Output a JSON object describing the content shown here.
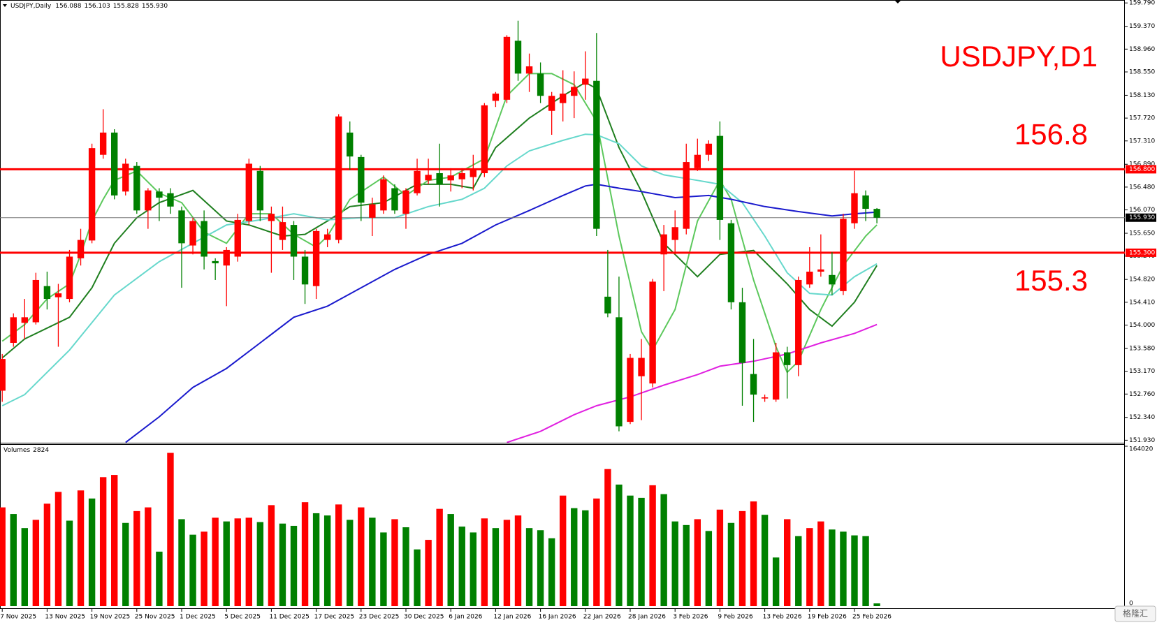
{
  "chart_data": {
    "type": "candlestick",
    "title": "USDJPY,D1",
    "header": {
      "symbol": "USDJPY,Daily",
      "ohlc_labels": [
        "156.088",
        "156.103",
        "155.828",
        "155.930"
      ]
    },
    "categories": [
      "7 Nov 2025",
      null,
      null,
      null,
      "13 Nov 2025",
      null,
      null,
      null,
      "19 Nov 2025",
      null,
      null,
      null,
      "25 Nov 2025",
      null,
      null,
      null,
      "1 Dec 2025",
      null,
      null,
      null,
      "5 Dec 2025",
      null,
      null,
      null,
      "11 Dec 2025",
      null,
      null,
      null,
      "17 Dec 2025",
      null,
      null,
      null,
      "23 Dec 2025",
      null,
      null,
      null,
      "30 Dec 2025",
      null,
      null,
      null,
      "6 Jan 2026",
      null,
      null,
      null,
      "12 Jan 2026",
      null,
      null,
      null,
      "16 Jan 2026",
      null,
      null,
      null,
      "22 Jan 2026",
      null,
      null,
      null,
      "28 Jan 2026",
      null,
      null,
      null,
      "3 Feb 2026",
      null,
      null,
      null,
      "9 Feb 2026",
      null,
      null,
      null,
      "13 Feb 2026",
      null,
      null,
      null,
      "19 Feb 2026",
      null,
      null,
      null,
      "25 Feb 2026",
      null,
      null
    ],
    "open": [
      152.82,
      153.68,
      154.04,
      154.05,
      154.7,
      154.5,
      154.47,
      155.2,
      155.52,
      157.06,
      157.46,
      156.4,
      156.86,
      156.06,
      156.4,
      156.37,
      156.06,
      155.43,
      155.87,
      155.15,
      155.07,
      155.23,
      155.87,
      156.77,
      155.87,
      155.53,
      155.8,
      155.23,
      154.7,
      155.53,
      155.53,
      157.46,
      157.02,
      155.93,
      156.06,
      156.46,
      156.0,
      156.37,
      156.6,
      156.73,
      156.6,
      156.62,
      156.66,
      156.73,
      158.03,
      158.05,
      159.11,
      158.52,
      158.52,
      157.85,
      157.99,
      158.12,
      158.32,
      158.39,
      154.51,
      154.14,
      152.26,
      153.08,
      152.95,
      155.27,
      155.53,
      155.73,
      156.82,
      157.06,
      157.4,
      155.83,
      154.41,
      153.12,
      152.68,
      152.66,
      153.51,
      153.28,
      154.73,
      154.96,
      154.9,
      154.61,
      155.83,
      156.33,
      156.088
    ],
    "high": [
      153.48,
      154.21,
      154.47,
      154.94,
      154.96,
      154.74,
      155.35,
      155.73,
      157.26,
      157.88,
      157.52,
      156.99,
      156.93,
      156.46,
      156.46,
      156.46,
      156.13,
      155.93,
      156.06,
      155.2,
      155.4,
      156.0,
      156.99,
      156.86,
      156.13,
      156.13,
      155.87,
      155.35,
      155.73,
      155.73,
      157.79,
      157.66,
      157.06,
      156.29,
      156.69,
      156.53,
      156.46,
      156.99,
      156.99,
      157.26,
      156.82,
      156.82,
      157.06,
      157.99,
      158.19,
      159.21,
      159.47,
      158.88,
      158.72,
      158.19,
      158.58,
      158.56,
      158.92,
      159.25,
      155.35,
      154.87,
      153.48,
      153.75,
      154.83,
      155.8,
      156.06,
      157.26,
      157.35,
      157.32,
      157.66,
      155.89,
      154.67,
      153.75,
      152.75,
      153.68,
      153.61,
      154.87,
      155.4,
      155.63,
      155.31,
      156.0,
      156.77,
      156.42,
      156.103
    ],
    "low": [
      152.62,
      153.61,
      153.75,
      154.01,
      154.28,
      153.61,
      154.41,
      155.07,
      155.47,
      156.99,
      156.26,
      156.33,
      156.0,
      155.73,
      155.87,
      156.0,
      154.67,
      155.27,
      155.0,
      154.81,
      154.34,
      155.14,
      155.8,
      155.87,
      154.94,
      155.35,
      154.81,
      154.38,
      154.47,
      155.4,
      155.47,
      156.79,
      155.87,
      155.6,
      156.0,
      156.0,
      155.73,
      156.33,
      156.53,
      156.13,
      156.4,
      156.46,
      156.42,
      156.66,
      157.92,
      157.99,
      158.39,
      158.19,
      157.99,
      157.42,
      157.66,
      157.72,
      158.05,
      155.6,
      154.14,
      152.09,
      152.22,
      152.29,
      152.88,
      154.61,
      155.27,
      155.63,
      156.77,
      156.95,
      155.53,
      154.28,
      152.55,
      152.26,
      152.62,
      152.62,
      152.68,
      153.08,
      154.67,
      154.87,
      154.54,
      154.54,
      155.73,
      155.87,
      155.828
    ],
    "close": [
      153.39,
      154.14,
      154.14,
      154.81,
      154.47,
      154.57,
      155.23,
      155.53,
      157.18,
      157.46,
      156.33,
      156.9,
      156.06,
      156.42,
      156.29,
      156.13,
      155.47,
      155.87,
      155.23,
      155.11,
      155.35,
      155.89,
      156.9,
      156.06,
      156.0,
      155.85,
      155.23,
      154.73,
      155.69,
      155.63,
      157.75,
      157.03,
      156.2,
      156.17,
      156.62,
      156.06,
      156.42,
      156.77,
      156.7,
      156.53,
      156.69,
      156.73,
      156.79,
      157.95,
      158.16,
      159.18,
      158.52,
      158.65,
      158.12,
      158.12,
      158.16,
      158.28,
      158.43,
      155.73,
      154.21,
      152.18,
      153.41,
      153.41,
      154.78,
      155.63,
      155.76,
      156.93,
      157.06,
      157.26,
      155.89,
      154.41,
      153.32,
      152.75,
      152.7,
      153.51,
      153.28,
      154.81,
      154.96,
      155.0,
      154.73,
      155.91,
      156.37,
      156.09,
      155.93
    ],
    "up_color": "#ff0000",
    "down_color": "#008000",
    "ylim": [
      151.93,
      159.79
    ],
    "yticks": [
      {
        "value": 159.79,
        "label": "159.790"
      },
      {
        "value": 159.37,
        "label": "159.370"
      },
      {
        "value": 158.96,
        "label": "158.960"
      },
      {
        "value": 158.55,
        "label": "158.550"
      },
      {
        "value": 158.13,
        "label": "158.130"
      },
      {
        "value": 157.72,
        "label": "157.720"
      },
      {
        "value": 157.31,
        "label": "157.310"
      },
      {
        "value": 156.89,
        "label": "156.890"
      },
      {
        "value": 156.48,
        "label": "156.480"
      },
      {
        "value": 156.07,
        "label": "156.070"
      },
      {
        "value": 155.65,
        "label": "155.650"
      },
      {
        "value": 155.24,
        "label": "155.240"
      },
      {
        "value": 154.82,
        "label": "154.820"
      },
      {
        "value": 154.41,
        "label": "154.410"
      },
      {
        "value": 154.0,
        "label": "154.000"
      },
      {
        "value": 153.58,
        "label": "153.580"
      },
      {
        "value": 153.17,
        "label": "153.170"
      },
      {
        "value": 152.76,
        "label": "152.760"
      },
      {
        "value": 152.34,
        "label": "152.340"
      },
      {
        "value": 151.93,
        "label": "151.930"
      }
    ],
    "last_price_label": "155.930",
    "levels": [
      {
        "value": 156.8,
        "label": "156.800",
        "text": "156.8"
      },
      {
        "value": 155.3,
        "label": "155.300",
        "text": "155.3"
      }
    ],
    "level_color": "#ff0000",
    "moving_averages": [
      {
        "color": "#1f7f1f",
        "x": [
          0,
          2,
          6,
          8,
          10,
          12,
          14,
          17,
          20,
          22,
          25,
          27,
          29,
          31,
          34,
          37,
          40,
          42,
          44,
          47,
          50,
          52,
          53,
          55,
          57,
          59,
          62,
          64,
          67,
          70,
          72,
          74,
          76,
          78
        ],
        "values": [
          153.41,
          153.75,
          154.14,
          154.67,
          155.47,
          155.93,
          156.2,
          156.42,
          155.87,
          155.8,
          155.6,
          155.63,
          155.87,
          156.13,
          156.2,
          156.53,
          156.53,
          156.46,
          157.19,
          157.72,
          158.12,
          158.36,
          158.25,
          157.19,
          156.4,
          155.47,
          154.87,
          155.27,
          155.34,
          154.74,
          154.28,
          153.98,
          154.41,
          155.07
        ]
      },
      {
        "color": "#5cc85c",
        "x": [
          0,
          2,
          4,
          6,
          7,
          8,
          9,
          10,
          12,
          14,
          16,
          18,
          20,
          22,
          24,
          26,
          28,
          29,
          31,
          34,
          36,
          38,
          40,
          43,
          45,
          47,
          49,
          51,
          53,
          55,
          57,
          58,
          60,
          62,
          64,
          65,
          67,
          69,
          70,
          71,
          73,
          75,
          77,
          78
        ],
        "values": [
          153.71,
          154.01,
          154.47,
          154.74,
          155.27,
          155.87,
          156.26,
          156.6,
          156.77,
          156.37,
          156.2,
          155.67,
          155.47,
          156.0,
          156.0,
          155.63,
          155.4,
          155.6,
          156.26,
          156.66,
          156.33,
          156.6,
          156.66,
          156.99,
          158.12,
          158.52,
          158.52,
          158.32,
          157.66,
          155.6,
          153.88,
          153.55,
          154.28,
          155.87,
          156.6,
          156.26,
          154.81,
          153.61,
          153.15,
          153.35,
          154.28,
          155.07,
          155.6,
          155.8
        ]
      },
      {
        "color": "#66d8cc",
        "x": [
          0,
          2,
          6,
          10,
          14,
          17,
          20,
          23,
          26,
          29,
          32,
          35,
          38,
          41,
          43,
          45,
          47,
          50,
          52,
          53,
          55,
          57,
          59,
          62,
          64,
          66,
          68,
          70,
          72,
          74,
          76,
          78
        ],
        "values": [
          152.55,
          152.75,
          153.55,
          154.54,
          155.14,
          155.47,
          155.8,
          155.89,
          156.0,
          155.89,
          155.93,
          155.93,
          156.13,
          156.26,
          156.46,
          156.86,
          157.13,
          157.32,
          157.43,
          157.42,
          157.26,
          156.86,
          156.7,
          156.6,
          156.53,
          156.2,
          155.6,
          154.94,
          154.57,
          154.54,
          154.87,
          155.1
        ]
      },
      {
        "color": "#1a1acd",
        "x": [
          11,
          14,
          17,
          20,
          23,
          26,
          29,
          32,
          35,
          38,
          41,
          44,
          47,
          50,
          52,
          53,
          55,
          57,
          60,
          63,
          65,
          68,
          71,
          74,
          76,
          78
        ],
        "values": [
          151.89,
          152.35,
          152.88,
          153.22,
          153.68,
          154.14,
          154.34,
          154.67,
          155.0,
          155.27,
          155.47,
          155.8,
          156.06,
          156.33,
          156.5,
          156.53,
          156.46,
          156.4,
          156.29,
          156.33,
          156.26,
          156.13,
          156.04,
          155.96,
          156.0,
          156.03
        ]
      },
      {
        "color": "#e020e0",
        "x": [
          45,
          48,
          51,
          53,
          56,
          59,
          62,
          64,
          67,
          70,
          73,
          76,
          78
        ],
        "values": [
          151.89,
          152.09,
          152.39,
          152.55,
          152.71,
          152.92,
          153.11,
          153.26,
          153.35,
          153.48,
          153.68,
          153.85,
          154.01
        ]
      }
    ],
    "volume_title": "Volumes",
    "volumes": [
      101300,
      94500,
      80100,
      88500,
      105100,
      117200,
      87700,
      118700,
      110400,
      132300,
      134600,
      85400,
      97500,
      101300,
      55900,
      157200,
      89200,
      73300,
      76400,
      90700,
      86900,
      90000,
      90700,
      86200,
      103600,
      84700,
      82400,
      106600,
      95300,
      93000,
      104300,
      88500,
      101300,
      90700,
      75600,
      89200,
      80900,
      58200,
      68000,
      99800,
      94500,
      81600,
      75600,
      90000,
      80100,
      88500,
      93000,
      80100,
      77900,
      69600,
      113400,
      100500,
      98300,
      110400,
      140600,
      124700,
      113400,
      111100,
      124000,
      114900,
      86900,
      83200,
      89200,
      77100,
      99000,
      85400,
      97500,
      107400,
      93700,
      49900,
      89200,
      71800,
      80100,
      86900,
      78600,
      76400,
      72600,
      71800,
      2824
    ],
    "vlim": [
      0,
      164020
    ],
    "vticks": [
      164020,
      0
    ],
    "watermark": "格隆汇"
  }
}
